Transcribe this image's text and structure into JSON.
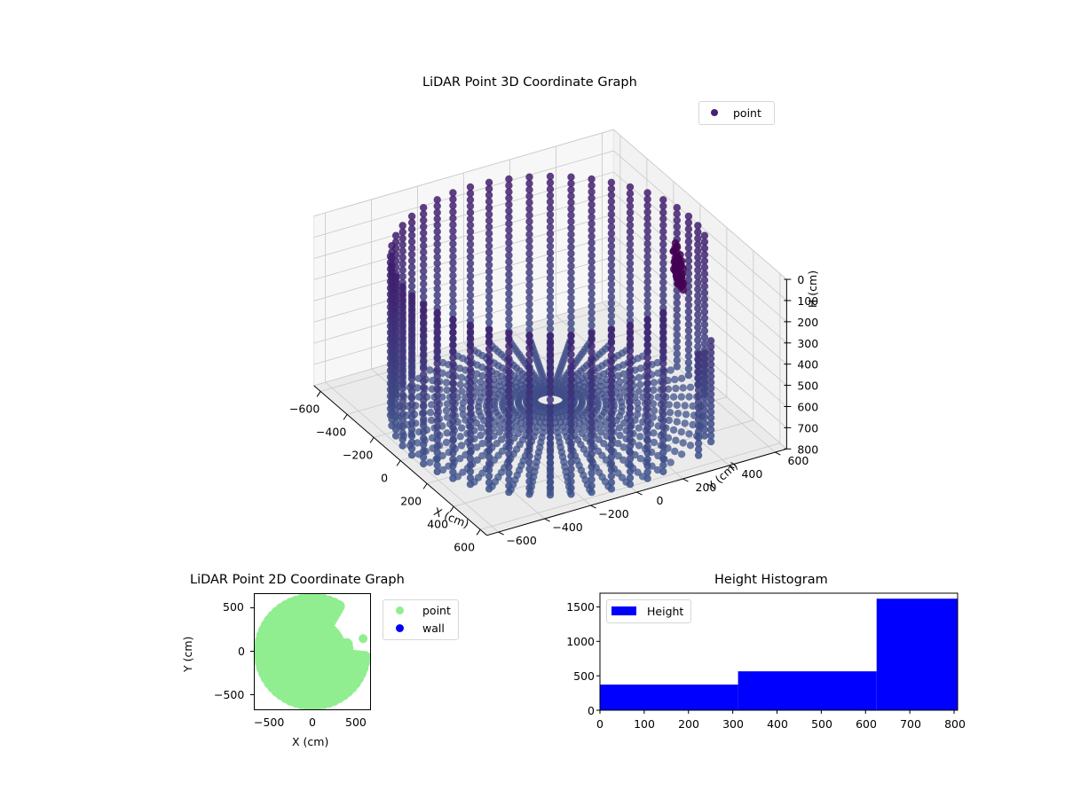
{
  "chart_data": [
    {
      "type": "scatter",
      "projection": "3d",
      "title": "LiDAR Point 3D Coordinate Graph",
      "xlabel": "X (cm)",
      "ylabel": "Y (cm)",
      "zlabel": "H (cm)",
      "xticks": [
        "−600",
        "−400",
        "−200",
        "0",
        "200",
        "400",
        "600"
      ],
      "yticks": [
        "−600",
        "−400",
        "−200",
        "0",
        "200",
        "400",
        "600"
      ],
      "zticks": [
        "0",
        "100",
        "200",
        "300",
        "400",
        "500",
        "600",
        "700",
        "800"
      ],
      "xlim": [
        -650,
        650
      ],
      "ylim": [
        -650,
        650
      ],
      "zlim": [
        800,
        0
      ],
      "zaxis_inverted": true,
      "legend": [
        {
          "label": "point",
          "color": "#482173"
        }
      ],
      "colormap": "viridis (dark purple #440154 → slate blue #3b528b)",
      "description": "Cylindrical wall of points, radius ~600 cm, heights 0–800 cm, arranged in vertical columns at ~10° azimuth steps; radial floor points converge to the center at H≈800; dense cluster near top (object) around x≈0,y≈600,H≈200–300; gap in the wall around +x,+y quadrant",
      "wall_radius_cm": 600,
      "height_range_cm": [
        0,
        800
      ]
    },
    {
      "type": "scatter",
      "title": "LiDAR Point 2D Coordinate Graph",
      "xlabel": "X (cm)",
      "ylabel": "Y (cm)",
      "xticks": [
        "−500",
        "0",
        "500"
      ],
      "yticks": [
        "−500",
        "0",
        "500"
      ],
      "xlim": [
        -670,
        670
      ],
      "ylim": [
        -670,
        670
      ],
      "legend": [
        {
          "label": "point",
          "color": "#90ee90"
        },
        {
          "label": "wall",
          "color": "#0000ff"
        }
      ],
      "description": "Filled light-green disc of points radius ~600 cm, with notches/gaps in the upper-right quadrant"
    },
    {
      "type": "bar",
      "subtype": "histogram",
      "title": "Height Histogram",
      "xlabel": "",
      "ylabel": "",
      "bin_edges": [
        0,
        312,
        625,
        808
      ],
      "values": [
        372,
        565,
        1620
      ],
      "xticks": [
        "0",
        "100",
        "200",
        "300",
        "400",
        "500",
        "600",
        "700",
        "800"
      ],
      "yticks": [
        "0",
        "500",
        "1000",
        "1500"
      ],
      "xlim": [
        0,
        808
      ],
      "ylim": [
        0,
        1700
      ],
      "legend": [
        {
          "label": "Height",
          "color": "#0000ff"
        }
      ],
      "bar_color": "#0000ff"
    }
  ],
  "figure": {
    "plot3d": {
      "title": "LiDAR Point 3D Coordinate Graph",
      "legend_label": "point",
      "xlabel": "X (cm)",
      "ylabel": "Y (cm)",
      "zlabel": "H (cm)"
    },
    "plot2d": {
      "title": "LiDAR Point 2D Coordinate Graph",
      "xlabel": "X (cm)",
      "ylabel": "Y (cm)",
      "legend_point": "point",
      "legend_wall": "wall",
      "xticks": [
        "−500",
        "0",
        "500"
      ],
      "yticks": [
        "500",
        "0",
        "−500"
      ]
    },
    "hist": {
      "title": "Height Histogram",
      "legend_label": "Height",
      "xticks": [
        "0",
        "100",
        "200",
        "300",
        "400",
        "500",
        "600",
        "700",
        "800"
      ],
      "yticks": [
        "1500",
        "1000",
        "500",
        "0"
      ]
    }
  }
}
